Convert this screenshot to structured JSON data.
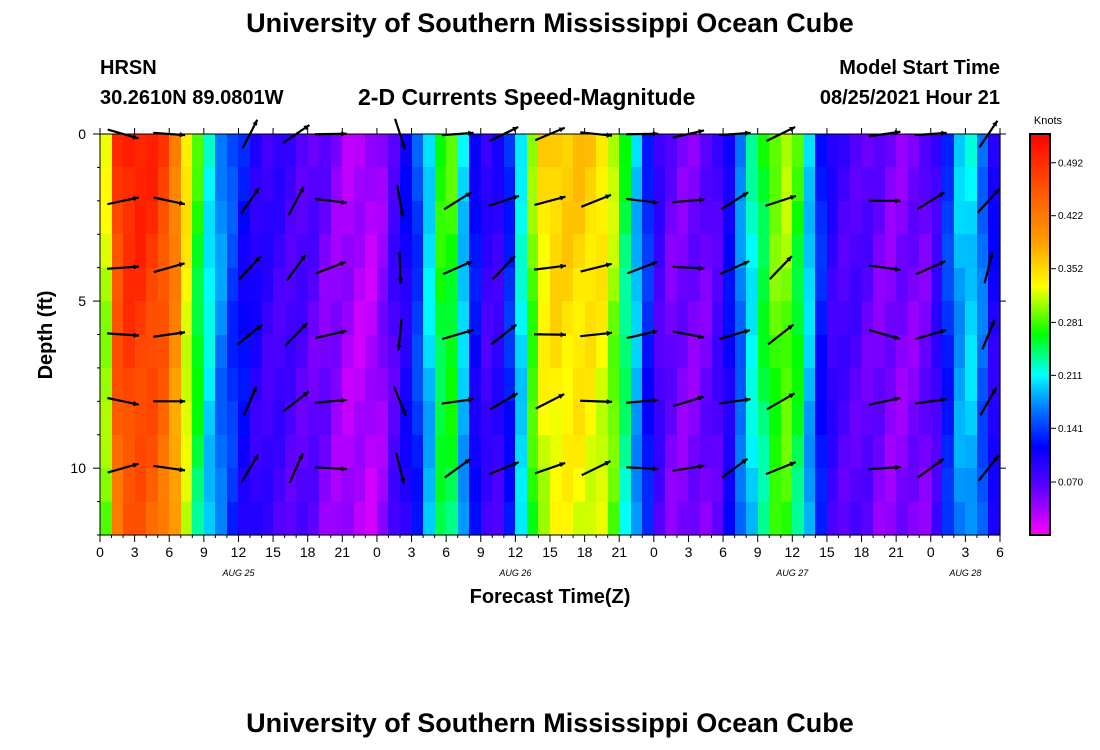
{
  "page": {
    "title_top": "University of Southern Mississippi Ocean Cube",
    "title_bottom": "University of Southern Mississippi Ocean Cube",
    "station_name": "HRSN",
    "station_coords": "30.2610N  89.0801W",
    "plot_title": "2-D Currents Speed-Magnitude",
    "model_start_label": "Model Start Time",
    "model_start_value": "08/25/2021 Hour 21"
  },
  "chart_data": {
    "type": "heatmap",
    "title": "2-D Currents Speed-Magnitude",
    "xlabel": "Forecast Time(Z)",
    "ylabel": "Depth (ft)",
    "xlim": [
      0,
      78
    ],
    "ylim": [
      0,
      12
    ],
    "x_ticks": [
      0,
      3,
      6,
      9,
      12,
      15,
      18,
      21,
      24,
      27,
      30,
      33,
      36,
      39,
      42,
      45,
      48,
      51,
      54,
      57,
      60,
      63,
      66,
      69,
      72,
      75,
      78
    ],
    "x_tick_labels": [
      "0",
      "3",
      "6",
      "9",
      "12",
      "15",
      "18",
      "21",
      "0",
      "3",
      "6",
      "9",
      "12",
      "15",
      "18",
      "21",
      "0",
      "3",
      "6",
      "9",
      "12",
      "15",
      "18",
      "21",
      "0",
      "3",
      "6"
    ],
    "date_labels": [
      {
        "hour": 12,
        "text": "AUG 25"
      },
      {
        "hour": 36,
        "text": "AUG 26"
      },
      {
        "hour": 60,
        "text": "AUG 27"
      },
      {
        "hour": 75,
        "text": "AUG 28"
      }
    ],
    "y_ticks": [
      0,
      5,
      10
    ],
    "y_tick_labels": [
      "0",
      "5",
      "10"
    ],
    "colorbar": {
      "units": "Knots",
      "range": [
        0.0,
        0.53
      ],
      "tick_values": [
        0.492,
        0.422,
        0.352,
        0.281,
        0.211,
        0.141,
        0.07
      ],
      "tick_labels": [
        "0.492",
        "0.422",
        "0.352",
        "0.281",
        "0.211",
        "0.141",
        "0.070"
      ]
    },
    "speed_profile": [
      {
        "t": 0,
        "v": 0.2
      },
      {
        "t": 0.5,
        "v": 0.32
      },
      {
        "t": 1,
        "v": 0.45
      },
      {
        "t": 2,
        "v": 0.5
      },
      {
        "t": 4,
        "v": 0.5
      },
      {
        "t": 6,
        "v": 0.46
      },
      {
        "t": 7,
        "v": 0.38
      },
      {
        "t": 8,
        "v": 0.3
      },
      {
        "t": 9,
        "v": 0.24
      },
      {
        "t": 10,
        "v": 0.19
      },
      {
        "t": 11,
        "v": 0.16
      },
      {
        "t": 12,
        "v": 0.13
      },
      {
        "t": 13,
        "v": 0.11
      },
      {
        "t": 14,
        "v": 0.09
      },
      {
        "t": 16,
        "v": 0.08
      },
      {
        "t": 18,
        "v": 0.07
      },
      {
        "t": 20,
        "v": 0.05
      },
      {
        "t": 22,
        "v": 0.03
      },
      {
        "t": 24,
        "v": 0.03
      },
      {
        "t": 25,
        "v": 0.06
      },
      {
        "t": 26,
        "v": 0.09
      },
      {
        "t": 27,
        "v": 0.12
      },
      {
        "t": 28,
        "v": 0.17
      },
      {
        "t": 29,
        "v": 0.24
      },
      {
        "t": 30,
        "v": 0.3
      },
      {
        "t": 31,
        "v": 0.25
      },
      {
        "t": 32,
        "v": 0.15
      },
      {
        "t": 33,
        "v": 0.09
      },
      {
        "t": 34,
        "v": 0.08
      },
      {
        "t": 35,
        "v": 0.1
      },
      {
        "t": 36,
        "v": 0.17
      },
      {
        "t": 37,
        "v": 0.26
      },
      {
        "t": 38,
        "v": 0.33
      },
      {
        "t": 39,
        "v": 0.36
      },
      {
        "t": 42,
        "v": 0.36
      },
      {
        "t": 44,
        "v": 0.34
      },
      {
        "t": 45,
        "v": 0.28
      },
      {
        "t": 46,
        "v": 0.22
      },
      {
        "t": 47,
        "v": 0.17
      },
      {
        "t": 48,
        "v": 0.1
      },
      {
        "t": 49,
        "v": 0.06
      },
      {
        "t": 51,
        "v": 0.05
      },
      {
        "t": 53,
        "v": 0.06
      },
      {
        "t": 54,
        "v": 0.09
      },
      {
        "t": 55,
        "v": 0.14
      },
      {
        "t": 56,
        "v": 0.2
      },
      {
        "t": 57,
        "v": 0.24
      },
      {
        "t": 58,
        "v": 0.28
      },
      {
        "t": 59,
        "v": 0.31
      },
      {
        "t": 60,
        "v": 0.3
      },
      {
        "t": 61,
        "v": 0.24
      },
      {
        "t": 62,
        "v": 0.16
      },
      {
        "t": 63,
        "v": 0.1
      },
      {
        "t": 64,
        "v": 0.08
      },
      {
        "t": 66,
        "v": 0.07
      },
      {
        "t": 68,
        "v": 0.05
      },
      {
        "t": 70,
        "v": 0.05
      },
      {
        "t": 72,
        "v": 0.06
      },
      {
        "t": 73,
        "v": 0.11
      },
      {
        "t": 74,
        "v": 0.17
      },
      {
        "t": 75,
        "v": 0.21
      },
      {
        "t": 76,
        "v": 0.2
      },
      {
        "t": 77,
        "v": 0.13
      },
      {
        "t": 78,
        "v": 0.08
      }
    ],
    "arrow_rows_depth_ft": [
      0,
      2,
      4,
      6,
      8,
      10
    ],
    "arrow_columns": [
      {
        "t": 2,
        "dir": 0
      },
      {
        "t": 6,
        "dir": 0
      },
      {
        "t": 13,
        "dir": 55
      },
      {
        "t": 17,
        "dir": 50
      },
      {
        "t": 20,
        "dir": 5
      },
      {
        "t": 26,
        "dir": -80
      },
      {
        "t": 31,
        "dir": 20
      },
      {
        "t": 35,
        "dir": 30
      },
      {
        "t": 39,
        "dir": 15
      },
      {
        "t": 43,
        "dir": 10
      },
      {
        "t": 47,
        "dir": 5
      },
      {
        "t": 51,
        "dir": 5
      },
      {
        "t": 55,
        "dir": 20
      },
      {
        "t": 59,
        "dir": 30
      },
      {
        "t": 68,
        "dir": 0
      },
      {
        "t": 72,
        "dir": 20
      },
      {
        "t": 77,
        "dir": 60
      }
    ]
  }
}
